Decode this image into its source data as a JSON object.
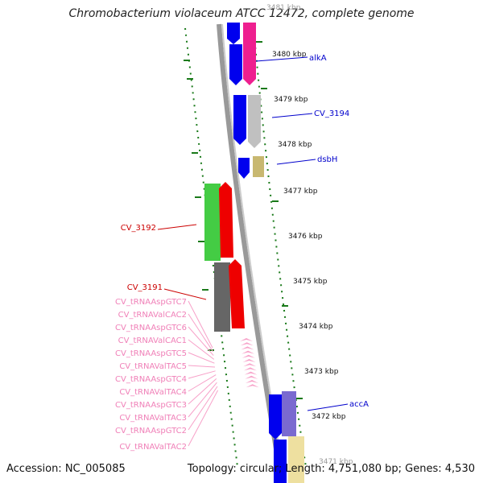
{
  "title": "Chromobacterium violaceum ATCC 12472, complete genome",
  "footer": {
    "accession": "Accession: NC_005085",
    "summary": "Topology: circular; Length: 4,751,080 bp; Genes: 4,530"
  },
  "ticks": [
    "3481 kbp",
    "3480 kbp",
    "3479 kbp",
    "3478 kbp",
    "3477 kbp",
    "3476 kbp",
    "3475 kbp",
    "3474 kbp",
    "3473 kbp",
    "3472 kbp",
    "3471 kbp"
  ],
  "forward_genes": [
    {
      "label": "alkA",
      "label_color": "#0000cc"
    },
    {
      "label": "CV_3194",
      "label_color": "#0000cc"
    },
    {
      "label": "dsbH",
      "label_color": "#0000cc"
    },
    {
      "label": "accA",
      "label_color": "#0000cc"
    }
  ],
  "reverse_genes": [
    {
      "label": "CV_3192",
      "label_color": "#cc0000"
    },
    {
      "label": "CV_3191",
      "label_color": "#cc0000"
    }
  ],
  "trna_labels": [
    "CV_tRNAAspGTC7",
    "CV_tRNAValCAC2",
    "CV_tRNAAspGTC6",
    "CV_tRNAValCAC1",
    "CV_tRNAAspGTC5",
    "CV_tRNAValTAC5",
    "CV_tRNAAspGTC4",
    "CV_tRNAValTAC4",
    "CV_tRNAAspGTC3",
    "CV_tRNAValTAC3",
    "CV_tRNAAspGTC2",
    "CV_tRNAValTAC2"
  ],
  "colors": {
    "forward_cds": "#0000ee",
    "reverse_cds": "#ee0000",
    "trna": "#f7a0c8",
    "gc_skew": "#1a7a1a",
    "backbone": "#888888",
    "magenta": "#ee1f8f",
    "silver": "#c0c0c0",
    "khaki": "#c8b870",
    "lightgreen": "#44cc44",
    "darkgray": "#666666",
    "purple": "#7a6ad0",
    "paleyellow": "#eee0a0"
  }
}
